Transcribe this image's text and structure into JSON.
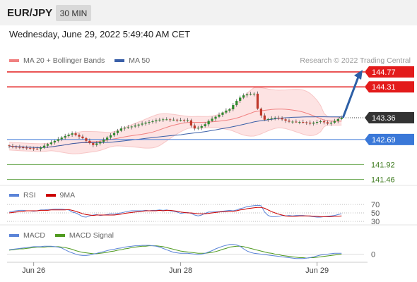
{
  "header": {
    "pair": "EUR/JPY",
    "timeframe": "30 MIN",
    "datetime": "Wednesday, June 29, 2022 5:49:40 AM CET",
    "credit": "Research © 2022 Trading Central"
  },
  "colors": {
    "resistance": "#e31b1b",
    "support_blue": "#3a78d8",
    "support_green": "#6aa84f",
    "current": "#333333",
    "candle_up": "#2e8b2e",
    "candle_down": "#c0392b",
    "ma20": "#f08080",
    "bollinger_fill": "#fde3e3",
    "ma50": "#3a5fa8",
    "rsi": "#5b84d8",
    "rsi_ma": "#cc0000",
    "macd": "#5b84d8",
    "macd_signal": "#4f9a1f",
    "forecast_arrow": "#2d5fa6"
  },
  "chart_data": [
    {
      "type": "candlestick",
      "title": "EUR/JPY 30 MIN",
      "legend": [
        {
          "label": "MA 20 + Bollinger Bands",
          "color": "#f08080"
        },
        {
          "label": "MA 50",
          "color": "#3a5fa8"
        }
      ],
      "x_tick_labels": [
        "Jun 26",
        "Jun 28",
        "Jun 29"
      ],
      "x_tick_index": [
        7,
        49,
        88
      ],
      "y_range": [
        141.3,
        144.9
      ],
      "levels": [
        {
          "value": 144.77,
          "label": "144.77",
          "role": "resistance"
        },
        {
          "value": 144.31,
          "label": "144.31",
          "role": "resistance"
        },
        {
          "value": 143.36,
          "label": "143.36",
          "role": "current"
        },
        {
          "value": 142.69,
          "label": "142.69",
          "role": "support"
        },
        {
          "value": 141.92,
          "label": "141.92",
          "role": "support_minor"
        },
        {
          "value": 141.46,
          "label": "141.46",
          "role": "support_minor"
        }
      ],
      "close": [
        142.49,
        142.47,
        142.46,
        142.45,
        142.44,
        142.43,
        142.42,
        142.41,
        142.4,
        142.44,
        142.5,
        142.55,
        142.6,
        142.65,
        142.7,
        142.75,
        142.8,
        142.84,
        142.88,
        142.83,
        142.78,
        142.73,
        142.65,
        142.58,
        142.52,
        142.57,
        142.62,
        142.68,
        142.75,
        142.82,
        142.89,
        142.96,
        143.03,
        143.05,
        143.07,
        143.09,
        143.12,
        143.15,
        143.18,
        143.21,
        143.23,
        143.25,
        143.28,
        143.3,
        143.31,
        143.31,
        143.3,
        143.3,
        143.29,
        143.29,
        143.28,
        143.28,
        143.12,
        143.03,
        143.05,
        143.1,
        143.16,
        143.26,
        143.33,
        143.39,
        143.45,
        143.52,
        143.58,
        143.62,
        143.75,
        143.88,
        143.98,
        144.05,
        144.08,
        144.09,
        144.1,
        143.64,
        143.43,
        143.3,
        143.32,
        143.34,
        143.36,
        143.35,
        143.31,
        143.27,
        143.24,
        143.24,
        143.23,
        143.23,
        143.22,
        143.21,
        143.18,
        143.21,
        143.23,
        143.25,
        143.22,
        143.18,
        143.21,
        143.26,
        143.32,
        143.36
      ],
      "forecast": {
        "from": 143.36,
        "to": 144.77,
        "direction": "up"
      }
    },
    {
      "type": "line",
      "name": "RSI",
      "legend": [
        {
          "label": "RSI",
          "color": "#5b84d8"
        },
        {
          "label": "9MA",
          "color": "#cc0000"
        }
      ],
      "y_range": [
        25,
        75
      ],
      "y_tick_labels": [
        30,
        50,
        70
      ],
      "rsi": [
        52,
        54,
        55,
        56,
        56,
        55,
        55,
        54,
        55,
        57,
        57,
        58,
        58,
        59,
        59,
        59,
        58,
        57,
        52,
        50,
        46,
        41,
        40,
        43,
        45,
        46,
        44,
        45,
        46,
        48,
        47,
        49,
        50,
        52,
        54,
        55,
        55,
        55,
        55,
        56,
        55,
        56,
        56,
        57,
        56,
        57,
        55,
        54,
        52,
        49,
        50,
        51,
        49,
        45,
        43,
        45,
        49,
        52,
        52,
        53,
        53,
        54,
        55,
        56,
        55,
        57,
        60,
        62,
        65,
        66,
        67,
        68,
        67,
        52,
        44,
        41,
        41,
        42,
        44,
        43,
        44,
        43,
        44,
        44,
        44,
        43,
        42,
        41,
        40,
        40,
        41,
        42,
        43,
        44,
        46,
        48
      ],
      "rsi_ma": [
        50,
        51,
        52,
        53,
        54,
        55,
        55,
        55,
        55,
        56,
        56,
        56,
        57,
        57,
        57,
        57,
        57,
        58,
        56,
        54,
        51,
        48,
        46,
        45,
        44,
        45,
        45,
        45,
        45,
        45,
        45,
        46,
        47,
        49,
        50,
        51,
        52,
        53,
        54,
        55,
        55,
        55,
        55,
        56,
        55,
        56,
        56,
        55,
        54,
        52,
        51,
        50,
        50,
        49,
        48,
        48,
        48,
        49,
        50,
        51,
        52,
        53,
        53,
        54,
        54,
        55,
        57,
        58,
        60,
        61,
        62,
        63,
        63,
        61,
        57,
        53,
        50,
        47,
        45,
        43,
        42,
        42,
        42,
        43,
        43,
        43,
        43,
        42,
        42,
        41,
        41,
        41,
        41,
        42,
        42,
        43
      ]
    },
    {
      "type": "line",
      "name": "MACD",
      "legend": [
        {
          "label": "MACD",
          "color": "#5b84d8"
        },
        {
          "label": "MACD Signal",
          "color": "#4f9a1f"
        }
      ],
      "y_tick_labels": [
        0
      ],
      "y_range": [
        -0.12,
        0.28
      ],
      "macd": [
        0.1,
        0.11,
        0.12,
        0.13,
        0.14,
        0.15,
        0.16,
        0.17,
        0.17,
        0.17,
        0.18,
        0.18,
        0.18,
        0.17,
        0.16,
        0.14,
        0.1,
        0.06,
        0.03,
        0.0,
        -0.02,
        -0.03,
        -0.03,
        -0.02,
        0.0,
        0.02,
        0.04,
        0.06,
        0.08,
        0.1,
        0.11,
        0.13,
        0.14,
        0.16,
        0.17,
        0.18,
        0.19,
        0.19,
        0.2,
        0.2,
        0.2,
        0.19,
        0.18,
        0.16,
        0.13,
        0.1,
        0.07,
        0.04,
        0.03,
        0.02,
        0.02,
        0.02,
        0.01,
        0.0,
        -0.01,
        0.0,
        0.02,
        0.05,
        0.08,
        0.12,
        0.15,
        0.18,
        0.2,
        0.22,
        0.22,
        0.21,
        0.18,
        0.12,
        0.07,
        0.04,
        0.02,
        0.01,
        0.0,
        -0.01,
        -0.02,
        -0.03,
        -0.04,
        -0.05,
        -0.06,
        -0.07,
        -0.08,
        -0.09,
        -0.1,
        -0.1,
        -0.1,
        -0.09,
        -0.08,
        -0.06,
        -0.04,
        -0.02,
        -0.01,
        0.0,
        0.01,
        0.02,
        0.02,
        0.02
      ],
      "signal": [
        0.09,
        0.1,
        0.11,
        0.12,
        0.12,
        0.13,
        0.14,
        0.15,
        0.16,
        0.16,
        0.16,
        0.17,
        0.17,
        0.17,
        0.17,
        0.16,
        0.15,
        0.13,
        0.11,
        0.08,
        0.06,
        0.04,
        0.03,
        0.02,
        0.01,
        0.01,
        0.02,
        0.03,
        0.04,
        0.06,
        0.07,
        0.09,
        0.1,
        0.12,
        0.13,
        0.15,
        0.16,
        0.17,
        0.18,
        0.18,
        0.19,
        0.19,
        0.19,
        0.18,
        0.17,
        0.15,
        0.13,
        0.11,
        0.09,
        0.07,
        0.06,
        0.05,
        0.04,
        0.03,
        0.02,
        0.02,
        0.02,
        0.03,
        0.04,
        0.06,
        0.08,
        0.11,
        0.13,
        0.16,
        0.17,
        0.18,
        0.18,
        0.17,
        0.15,
        0.13,
        0.11,
        0.09,
        0.07,
        0.05,
        0.03,
        0.02,
        0.0,
        -0.01,
        -0.03,
        -0.04,
        -0.05,
        -0.06,
        -0.07,
        -0.08,
        -0.08,
        -0.09,
        -0.08,
        -0.08,
        -0.07,
        -0.06,
        -0.05,
        -0.04,
        -0.03,
        -0.02,
        -0.01,
        0.0
      ]
    }
  ]
}
